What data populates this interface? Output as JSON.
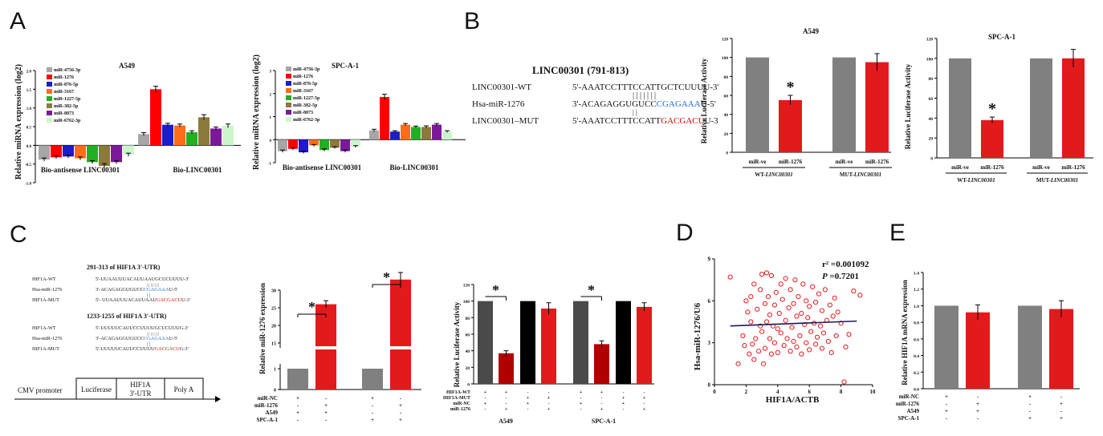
{
  "panel_labels": {
    "A": "A",
    "B": "B",
    "C": "C",
    "D": "D",
    "E": "E"
  },
  "colors": {
    "mir4756": "#a6a6a6",
    "mir1276": "#ff0000",
    "mir876": "#1c1ccc",
    "mir3167": "#ff6d1a",
    "mir1227": "#22b022",
    "mir382": "#8b7a3a",
    "mir8073": "#7a1a9a",
    "mir6762": "#ccf5cc",
    "grey": "#808080",
    "darkgrey": "#4a4a4a",
    "red": "#e31a1c",
    "darkred": "#b00000",
    "black": "#000000",
    "seq_blue": "#1f6fc8",
    "seq_red": "#e00000",
    "navy": "#1a1a5a"
  },
  "chart_data": [
    {
      "id": "A1",
      "type": "bar",
      "title": "A549",
      "ylabel": "Relative miRNA expression (log2)",
      "ylim": [
        -1,
        2
      ],
      "yticks": [
        "-1.0",
        "-0.5",
        "0.0",
        "0.5",
        "1.0",
        "1.5",
        "2.0"
      ],
      "groups": [
        "Bio-antisense LINC00301",
        "Bio-LINC00301"
      ],
      "series": [
        {
          "name": "miR-4756-3p",
          "values": [
            -0.38,
            0.3
          ],
          "err": [
            0.04,
            0.04
          ]
        },
        {
          "name": "miR-1276",
          "values": [
            -0.32,
            1.5
          ],
          "err": [
            0.04,
            0.08
          ]
        },
        {
          "name": "miR-876-5p",
          "values": [
            -0.3,
            0.55
          ],
          "err": [
            0.04,
            0.04
          ]
        },
        {
          "name": "miR-3167",
          "values": [
            -0.35,
            0.53
          ],
          "err": [
            0.04,
            0.04
          ]
        },
        {
          "name": "miR-1227-5p",
          "values": [
            -0.45,
            0.35
          ],
          "err": [
            0.04,
            0.04
          ]
        },
        {
          "name": "miR-382-5p",
          "values": [
            -0.55,
            0.75
          ],
          "err": [
            0.06,
            0.07
          ]
        },
        {
          "name": "miR-8073",
          "values": [
            -0.45,
            0.45
          ],
          "err": [
            0.04,
            0.04
          ]
        },
        {
          "name": "miR-6762-3p",
          "values": [
            -0.25,
            0.52
          ],
          "err": [
            0.04,
            0.05
          ]
        }
      ]
    },
    {
      "id": "A2",
      "type": "bar",
      "title": "SPC-A-1",
      "ylabel": "Relative miRNA expression (log2)",
      "ylim": [
        -1,
        3
      ],
      "yticks": [
        "-1",
        "0",
        "1",
        "2",
        "3"
      ],
      "groups": [
        "Bio-antisense LINC00301",
        "Bio-LINC00301"
      ],
      "series": [
        {
          "name": "miR-4756-3p",
          "values": [
            -0.5,
            0.4
          ],
          "err": [
            0.05,
            0.05
          ]
        },
        {
          "name": "miR-1276",
          "values": [
            -0.4,
            1.85
          ],
          "err": [
            0.05,
            0.12
          ]
        },
        {
          "name": "miR-876-5p",
          "values": [
            -0.55,
            0.35
          ],
          "err": [
            0.05,
            0.04
          ]
        },
        {
          "name": "miR-3167",
          "values": [
            -0.25,
            0.65
          ],
          "err": [
            0.04,
            0.05
          ]
        },
        {
          "name": "miR-1227-5p",
          "values": [
            -0.45,
            0.55
          ],
          "err": [
            0.05,
            0.04
          ]
        },
        {
          "name": "miR-382-5p",
          "values": [
            -0.35,
            0.55
          ],
          "err": [
            0.04,
            0.05
          ]
        },
        {
          "name": "miR-8073",
          "values": [
            -0.5,
            0.65
          ],
          "err": [
            0.05,
            0.05
          ]
        },
        {
          "name": "miR-6762-3p",
          "values": [
            -0.3,
            0.35
          ],
          "err": [
            0.04,
            0.04
          ]
        }
      ]
    },
    {
      "id": "B1",
      "type": "bar",
      "title": "A549",
      "ylabel": "Relative Luciferase Activity",
      "ylim": [
        0,
        120
      ],
      "yticks": [
        "0",
        "20",
        "40",
        "60",
        "80",
        "100",
        "120"
      ],
      "categories": [
        "miR-ve",
        "miR-1276",
        "miR-ve",
        "miR-1276"
      ],
      "values": [
        100,
        55,
        100,
        95
      ],
      "err": [
        0,
        5,
        0,
        9
      ],
      "groups": [
        "WT-LINC00301",
        "MUT-LINC00301"
      ],
      "star": "*"
    },
    {
      "id": "B2",
      "type": "bar",
      "title": "SPC-A-1",
      "ylabel": "Relative Luciferase Activity",
      "ylim": [
        0,
        120
      ],
      "yticks": [
        "0",
        "20",
        "40",
        "60",
        "80",
        "100",
        "120"
      ],
      "categories": [
        "miR-ve",
        "miR-1276",
        "miR-ve",
        "miR-1276"
      ],
      "values": [
        100,
        38,
        100,
        100
      ],
      "err": [
        0,
        3,
        0,
        9
      ],
      "groups": [
        "WT-LINC00301",
        "MUT-LINC00301"
      ],
      "star": "*"
    },
    {
      "id": "C1",
      "type": "bar",
      "ylabel": "Relative miR-1276 expression",
      "yticks_low": [
        "0",
        "1"
      ],
      "yticks_high": [
        "15",
        "20",
        "25",
        "30"
      ],
      "values": [
        1,
        26,
        1,
        33
      ],
      "err": [
        0,
        1,
        0,
        2
      ],
      "rows": [
        {
          "label": "miR-NC",
          "marks": [
            "+",
            "-",
            "+",
            "-"
          ]
        },
        {
          "label": "miR-1276",
          "marks": [
            "-",
            "+",
            "-",
            "+"
          ]
        },
        {
          "label": "A549",
          "marks": [
            "+",
            "+",
            "-",
            "-"
          ]
        },
        {
          "label": "SPC-A-1",
          "marks": [
            "-",
            "-",
            "+",
            "+"
          ]
        }
      ],
      "star": "*"
    },
    {
      "id": "C2",
      "type": "bar",
      "ylabel": "Relative Luciferase Activity",
      "ylim": [
        0,
        120
      ],
      "yticks": [
        "0",
        "20",
        "40",
        "60",
        "80",
        "100",
        "120"
      ],
      "values": [
        100,
        37,
        100,
        91,
        100,
        48,
        100,
        93
      ],
      "err": [
        0,
        3,
        0,
        7,
        0,
        4,
        0,
        5
      ],
      "rows": [
        {
          "label": "HIF1A-WT",
          "marks": [
            "+",
            "+",
            "-",
            "-",
            "+",
            "+",
            "-",
            "-"
          ]
        },
        {
          "label": "HIF1A-MUT",
          "marks": [
            "-",
            "-",
            "+",
            "+",
            "-",
            "-",
            "+",
            "+"
          ]
        },
        {
          "label": "miR-NC",
          "marks": [
            "+",
            "-",
            "+",
            "-",
            "+",
            "-",
            "+",
            "-"
          ]
        },
        {
          "label": "miR-1276",
          "marks": [
            "-",
            "+",
            "-",
            "+",
            "-",
            "+",
            "-",
            "+"
          ]
        }
      ],
      "groups": [
        "A549",
        "SPC-A-1"
      ],
      "star": "*"
    },
    {
      "id": "D",
      "type": "scatter",
      "xlabel": "HIF1A/ACTB",
      "ylabel": "Hsa-miR-1276/U6",
      "xlim": [
        0,
        10
      ],
      "ylim": [
        0,
        9
      ],
      "xticks": [
        "0",
        "2",
        "4",
        "6",
        "8",
        "10"
      ],
      "yticks": [
        "0",
        "3",
        "6",
        "9"
      ],
      "annotation_r": "r² =0.001092",
      "annotation_p_label": "P",
      "annotation_p_value": " =0.7201",
      "fit": [
        [
          1,
          4.2
        ],
        [
          9,
          4.55
        ]
      ],
      "points": [
        [
          1,
          7.7
        ],
        [
          1.5,
          1.5
        ],
        [
          1.8,
          3.5
        ],
        [
          1.9,
          2.8
        ],
        [
          2,
          6
        ],
        [
          2.1,
          5.2
        ],
        [
          2.2,
          2.2
        ],
        [
          2.3,
          6.3
        ],
        [
          2.3,
          4.5
        ],
        [
          2.4,
          2.9
        ],
        [
          2.5,
          1.8
        ],
        [
          2.5,
          7.2
        ],
        [
          2.6,
          3.3
        ],
        [
          2.7,
          5.4
        ],
        [
          2.8,
          2.4
        ],
        [
          2.9,
          6.8
        ],
        [
          2.9,
          4.2
        ],
        [
          3,
          7.9
        ],
        [
          3,
          3.8
        ],
        [
          3.1,
          1.5
        ],
        [
          3.2,
          5.8
        ],
        [
          3.2,
          2.6
        ],
        [
          3.3,
          8
        ],
        [
          3.3,
          4.5
        ],
        [
          3.4,
          6.3
        ],
        [
          3.5,
          3.3
        ],
        [
          3.5,
          5
        ],
        [
          3.6,
          2.2
        ],
        [
          3.6,
          7.8
        ],
        [
          3.7,
          4.2
        ],
        [
          3.8,
          5.7
        ],
        [
          3.8,
          3
        ],
        [
          3.9,
          6.6
        ],
        [
          4,
          4
        ],
        [
          4,
          2.3
        ],
        [
          4.1,
          5.1
        ],
        [
          4.2,
          3.7
        ],
        [
          4.2,
          7.2
        ],
        [
          4.3,
          6.1
        ],
        [
          4.4,
          2.8
        ],
        [
          4.5,
          4.6
        ],
        [
          4.5,
          7.6
        ],
        [
          4.6,
          3.3
        ],
        [
          4.7,
          5.5
        ],
        [
          4.8,
          2.4
        ],
        [
          4.8,
          6.8
        ],
        [
          4.9,
          4.1
        ],
        [
          5,
          3.1
        ],
        [
          5,
          5.8
        ],
        [
          5.1,
          7.5
        ],
        [
          5.2,
          2.7
        ],
        [
          5.2,
          4.9
        ],
        [
          5.3,
          6.3
        ],
        [
          5.4,
          3.5
        ],
        [
          5.5,
          5.1
        ],
        [
          5.5,
          2.2
        ],
        [
          5.6,
          7.2
        ],
        [
          5.7,
          4.3
        ],
        [
          5.8,
          3
        ],
        [
          5.8,
          6
        ],
        [
          5.9,
          4.8
        ],
        [
          6,
          2.5
        ],
        [
          6,
          5.6
        ],
        [
          6.1,
          3.8
        ],
        [
          6.2,
          7
        ],
        [
          6.3,
          4.4
        ],
        [
          6.4,
          2.9
        ],
        [
          6.4,
          5.9
        ],
        [
          6.5,
          3.4
        ],
        [
          6.6,
          6.5
        ],
        [
          6.7,
          4.2
        ],
        [
          6.8,
          2.6
        ],
        [
          6.8,
          5.3
        ],
        [
          6.9,
          3.7
        ],
        [
          7,
          6.8
        ],
        [
          7.1,
          4.6
        ],
        [
          7.2,
          3.1
        ],
        [
          7.3,
          5.7
        ],
        [
          7.4,
          2.3
        ],
        [
          7.5,
          4.9
        ],
        [
          7.6,
          6.2
        ],
        [
          7.7,
          3.5
        ],
        [
          7.8,
          5.2
        ],
        [
          8,
          4.4
        ],
        [
          8.2,
          0.2
        ],
        [
          8.3,
          2.7
        ],
        [
          8.5,
          3.6
        ],
        [
          8.8,
          6.7
        ],
        [
          9.2,
          6.4
        ]
      ]
    },
    {
      "id": "E",
      "type": "bar",
      "ylabel": "Relative HIF1A mRNA expression",
      "ylim": [
        0,
        1.4
      ],
      "yticks": [
        "0.0",
        "0.2",
        "0.4",
        "0.6",
        "0.8",
        "1.0",
        "1.2",
        "1.4"
      ],
      "values": [
        1,
        0.92,
        1,
        0.96
      ],
      "err": [
        0,
        0.09,
        0,
        0.1
      ],
      "rows": [
        {
          "label": "miR-NC",
          "marks": [
            "+",
            "-",
            "+",
            "-"
          ]
        },
        {
          "label": "miR-1276",
          "marks": [
            "-",
            "+",
            "-",
            "+"
          ]
        },
        {
          "label": "A549",
          "marks": [
            "+",
            "+",
            "-",
            "-"
          ]
        },
        {
          "label": "SPC-A-1",
          "marks": [
            "-",
            "-",
            "+",
            "+"
          ]
        }
      ]
    }
  ],
  "seqB": {
    "title": "LINC00301 (791-813)",
    "rows": [
      {
        "label": "LINC00301-WT",
        "pre": "5'-AAATCCTTTCCATTGCTCUUUU-3'",
        "hl": "",
        "post": ""
      },
      {
        "label": "Hsa-miR-1276",
        "pre": "3'-ACAGAGGUGUCC",
        "hl": "CGAGAAA",
        "post": "U-5'"
      },
      {
        "label": "LINC00301–MUT",
        "pre": "5'-AAATCCTTTCCATT",
        "hl": "GACGACU",
        "post": "U-3"
      }
    ],
    "bars": "| | | | | | |"
  },
  "seqC": {
    "title1": "291-313 of  HIF1A 3'-UTR)",
    "rows1": [
      {
        "label": "HIF1A-WT",
        "pre": "5'-UUAAUUUACAUUAAUGCUCUUUU-3'",
        "hl": "",
        "post": ""
      },
      {
        "label": "Hsa-miR-1276",
        "pre": "3'-ACAGAGGUGUCC",
        "hl": "CGAGAAA",
        "post": "U-5'"
      },
      {
        "label": "HIF1A-MUT",
        "pre": "5'- UUAAUUUACAUUAAU",
        "hl": "GACGACU",
        "post": "U-3'"
      }
    ],
    "title2": "1233-1255 of  HIF1A 3'-UTR)",
    "rows2": [
      {
        "label": "HIF1A-WT",
        "pre": "5'-UUUUUCAUUCCUUUUGCUCUUUG-3'",
        "hl": "",
        "post": ""
      },
      {
        "label": "Hsa-miR-1276",
        "pre": "3'-ACAGAGGUGUCC",
        "hl": "CGAGAAA",
        "post": "U-5'"
      },
      {
        "label": "HIF1A-MUT",
        "pre": "5'-UUUUUCAUUCCUUUU",
        "hl": "GACGACU",
        "post": "G-3'"
      }
    ],
    "bars": "| | | | | | |"
  },
  "construct": {
    "cmv": "CMV promoter",
    "luc": "Luciferase",
    "hif1": "HIF1A",
    "hif2": "3'-UTR",
    "polya": "Poly A"
  }
}
